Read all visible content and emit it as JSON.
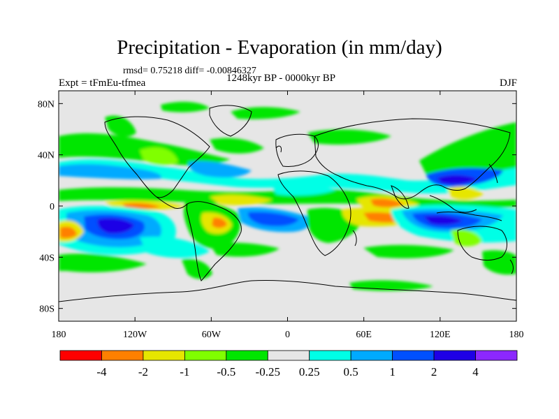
{
  "header": {
    "title": "Precipitation - Evaporation (in mm/day)",
    "stats": "rmsd= 0.75218 diff= -0.00846327",
    "period": "1248kyr BP - 0000kyr BP",
    "experiment": "Expt = tFmEu-tfmea",
    "season": "DJF"
  },
  "map": {
    "lat_labels": [
      "80N",
      "40N",
      "0",
      "40S",
      "80S"
    ],
    "lat_values": [
      80,
      40,
      0,
      -40,
      -80
    ],
    "lon_labels": [
      "180",
      "120W",
      "60W",
      "0",
      "60E",
      "120E",
      "180"
    ],
    "lon_values": [
      -180,
      -120,
      -60,
      0,
      60,
      120,
      180
    ],
    "lat_range": [
      -90,
      90
    ],
    "lon_range": [
      -180,
      180
    ]
  },
  "colorbar": {
    "labels": [
      "-4",
      "-2",
      "-1",
      "-0.5",
      "-0.25",
      "0.25",
      "0.5",
      "1",
      "2",
      "4"
    ],
    "colors": [
      "#ff0000",
      "#ff8000",
      "#e6e600",
      "#80ff00",
      "#00e600",
      "#e6e6e6",
      "#00ffe6",
      "#00aaff",
      "#0050ff",
      "#1e00e6",
      "#8c28ff"
    ]
  },
  "colors": {
    "land_ocean_neutral": "#e6e6e6",
    "coastline": "#000000"
  }
}
